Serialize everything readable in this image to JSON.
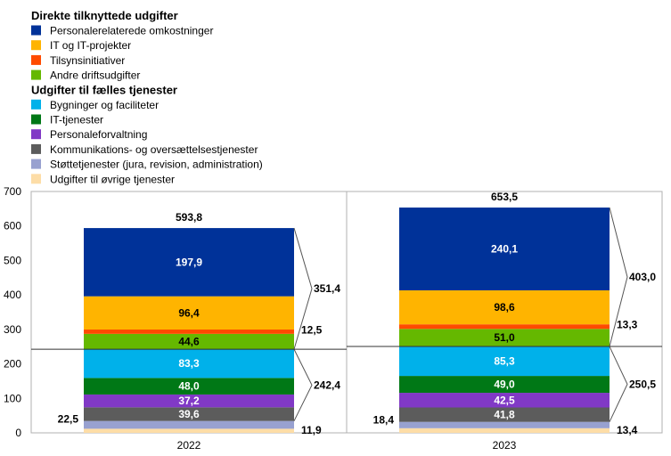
{
  "chart_data": {
    "type": "bar",
    "stacked": true,
    "categories": [
      "2022",
      "2023"
    ],
    "ylim": [
      0,
      700
    ],
    "yticks": [
      0,
      100,
      200,
      300,
      400,
      500,
      600,
      700
    ],
    "grid": false,
    "legend_groups": [
      {
        "title": "Direkte tilknyttede udgifter",
        "series": [
          0,
          1,
          2,
          3
        ]
      },
      {
        "title": "Udgifter til fælles tjenester",
        "series": [
          4,
          5,
          6,
          7,
          8,
          9
        ]
      }
    ],
    "series": [
      {
        "name": "Personalerelaterede omkostninger",
        "color": "#003299",
        "values": [
          197.9,
          240.1
        ],
        "labels": [
          "197,9",
          "240,1"
        ]
      },
      {
        "name": "IT og IT-projekter",
        "color": "#FFB400",
        "values": [
          96.4,
          98.6
        ],
        "labels": [
          "96,4",
          "98,6"
        ]
      },
      {
        "name": "Tilsynsinitiativer",
        "color": "#FF4B00",
        "values": [
          12.5,
          13.3
        ],
        "labels": [
          "12,5",
          "13,3"
        ]
      },
      {
        "name": "Andre driftsudgifter",
        "color": "#65B800",
        "values": [
          44.6,
          51.0
        ],
        "labels": [
          "44,6",
          "51,0"
        ]
      },
      {
        "name": "Bygninger og faciliteter",
        "color": "#00B1EA",
        "values": [
          83.3,
          85.3
        ],
        "labels": [
          "83,3",
          "85,3"
        ]
      },
      {
        "name": "IT-tjenester",
        "color": "#007816",
        "values": [
          48.0,
          49.0
        ],
        "labels": [
          "48,0",
          "49,0"
        ]
      },
      {
        "name": "Personaleforvaltning",
        "color": "#8139C6",
        "values": [
          37.2,
          42.5
        ],
        "labels": [
          "37,2",
          "42,5"
        ]
      },
      {
        "name": "Kommunikations- og oversættelsestjenester",
        "color": "#5C5C5C",
        "values": [
          39.6,
          41.8
        ],
        "labels": [
          "39,6",
          "41,8"
        ]
      },
      {
        "name": "Støttetjenester (jura, revision, administration)",
        "color": "#98A1D0",
        "values": [
          22.5,
          18.4
        ],
        "labels": [
          "22,5",
          "18,4"
        ]
      },
      {
        "name": "Udgifter til øvrige tjenester",
        "color": "#FDDDA7",
        "values": [
          11.9,
          13.4
        ],
        "labels": [
          "11,9",
          "13,4"
        ]
      }
    ],
    "totals": [
      "593,8",
      "653,5"
    ],
    "direct_totals": [
      "351,4",
      "403,0"
    ],
    "shared_totals": [
      "242,4",
      "250,5"
    ]
  }
}
